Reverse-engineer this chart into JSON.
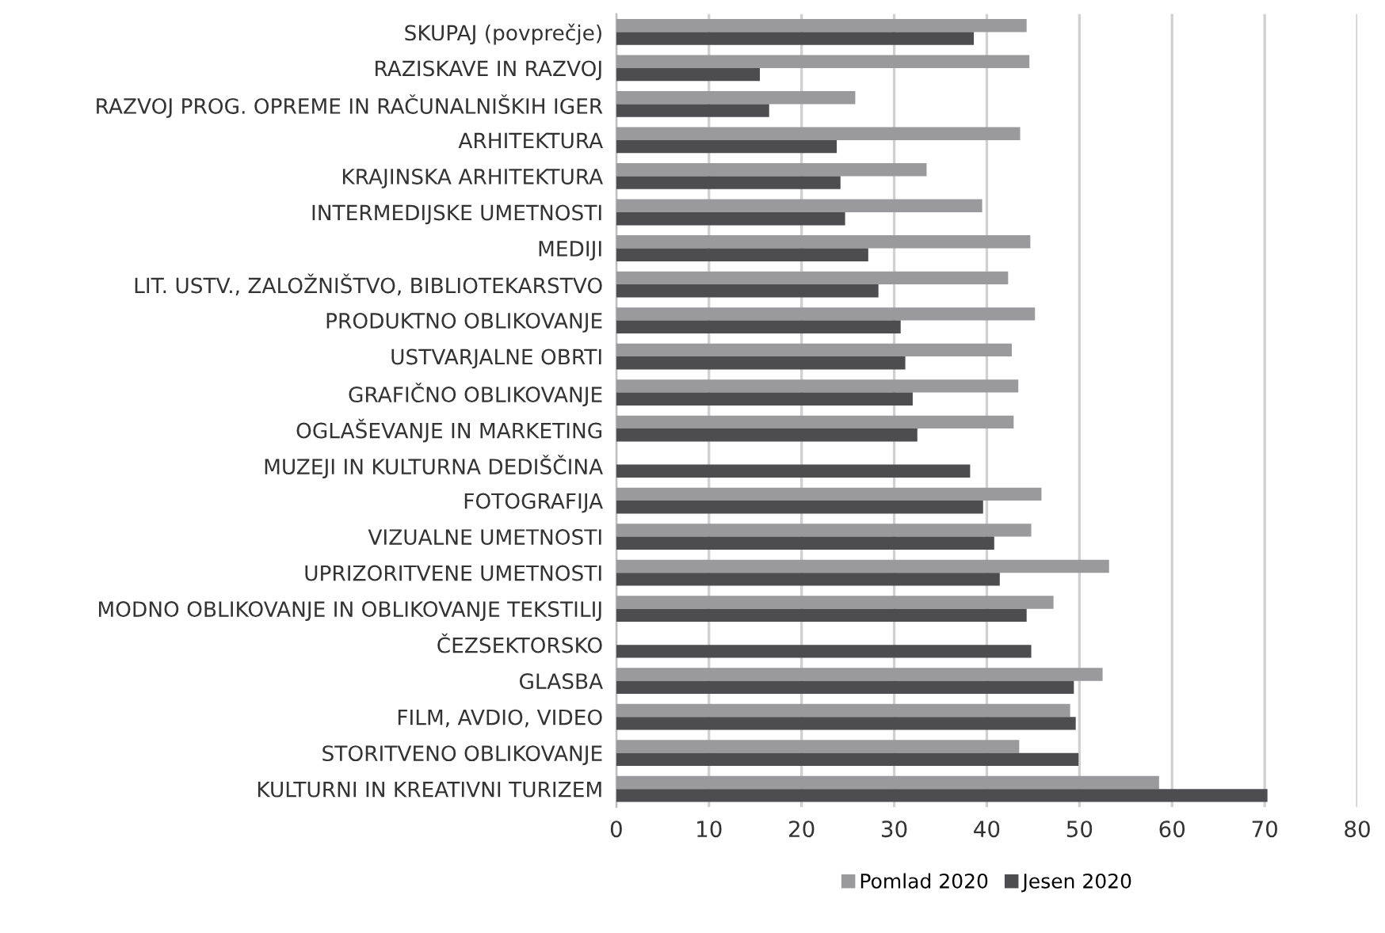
{
  "chart_data": {
    "type": "bar",
    "orientation": "horizontal",
    "categories": [
      "SKUPAJ (povprečje)",
      "RAZISKAVE IN RAZVOJ",
      "RAZVOJ PROG. OPREME IN RAČUNALNIŠKIH IGER",
      "ARHITEKTURA",
      "KRAJINSKA ARHITEKTURA",
      "INTERMEDIJSKE UMETNOSTI",
      "MEDIJI",
      "LIT. USTV., ZALOŽNIŠTVO, BIBLIOTEKARSTVO",
      "PRODUKTNO OBLIKOVANJE",
      "USTVARJALNE OBRTI",
      "GRAFIČNO OBLIKOVANJE",
      "OGLAŠEVANJE IN MARKETING",
      "MUZEJI IN KULTURNA DEDIŠČINA",
      "FOTOGRAFIJA",
      "VIZUALNE UMETNOSTI",
      "UPRIZORITVENE UMETNOSTI",
      "MODNO OBLIKOVANJE IN OBLIKOVANJE TEKSTILIJ",
      "ČEZSEKTORSKO",
      "GLASBA",
      "FILM, AVDIO, VIDEO",
      "STORITVENO OBLIKOVANJE",
      "KULTURNI IN KREATIVNI TURIZEM"
    ],
    "series": [
      {
        "name": "Pomlad 2020",
        "color": "#9a9a9c",
        "values": [
          44.3,
          44.6,
          25.8,
          43.6,
          33.5,
          39.5,
          44.7,
          42.3,
          45.2,
          42.7,
          43.4,
          42.9,
          null,
          45.9,
          44.8,
          53.2,
          47.2,
          null,
          52.5,
          49.0,
          43.5,
          58.6
        ]
      },
      {
        "name": "Jesen 2020",
        "color": "#4d4d4f",
        "values": [
          38.6,
          15.5,
          16.5,
          23.8,
          24.2,
          24.7,
          27.2,
          28.3,
          30.7,
          31.2,
          32.0,
          32.5,
          38.2,
          39.6,
          40.8,
          41.4,
          44.3,
          44.8,
          49.4,
          49.6,
          49.9,
          70.3
        ]
      }
    ],
    "xlim": [
      0,
      80
    ],
    "xticks": [
      0,
      10,
      20,
      30,
      40,
      50,
      60,
      70,
      80
    ],
    "grid": "x",
    "legend": "bottom"
  }
}
